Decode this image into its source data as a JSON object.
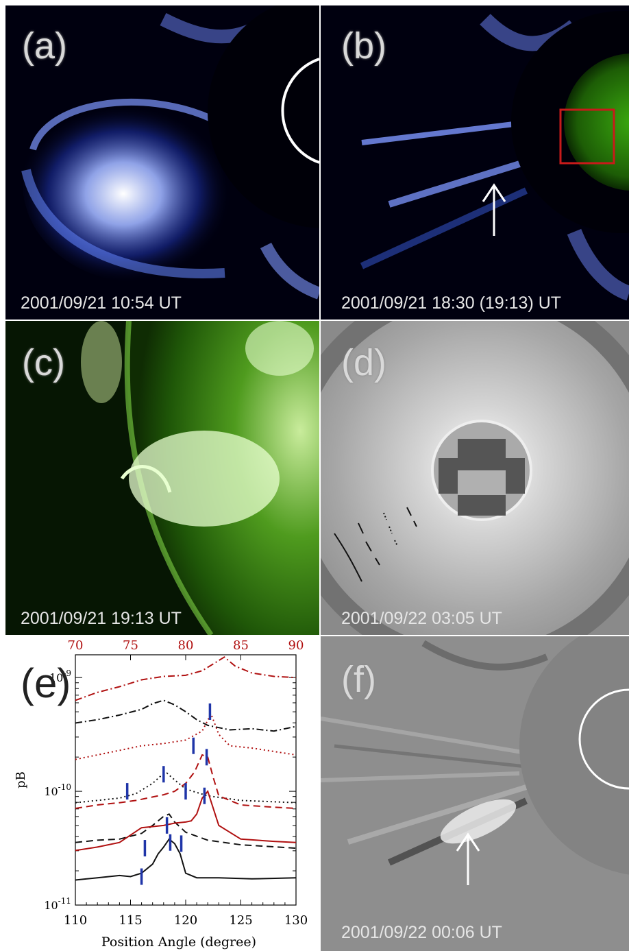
{
  "panels": {
    "a": {
      "label": "(a)",
      "timestamp": "2001/09/21 10:54 UT"
    },
    "b": {
      "label": "(b)",
      "timestamp": "2001/09/21 18:30 (19:13) UT"
    },
    "c": {
      "label": "(c)",
      "timestamp": "2001/09/21 19:13 UT"
    },
    "d": {
      "label": "(d)",
      "timestamp": "2001/09/22 03:05 UT"
    },
    "e": {
      "label": "(e)"
    },
    "f": {
      "label": "(f)",
      "timestamp": "2001/09/22 00:06 UT"
    }
  },
  "colors": {
    "coronagraph_blue": "#3a5fe0",
    "eit_green": "#2e8a12",
    "red_curve": "#b01010",
    "marker_blue": "#1f35a8"
  },
  "icons": {
    "arrow_b": "up-arrow-icon",
    "arrow_f": "up-arrow-icon"
  },
  "chart_data": {
    "type": "line",
    "xlabel": "Position Angle (degree)",
    "ylabel": "pB",
    "x_bottom_ticks": [
      "110",
      "115",
      "120",
      "125",
      "130"
    ],
    "x_top_ticks": [
      "70",
      "75",
      "80",
      "85",
      "90"
    ],
    "y_tick_labels": [
      "10^-9",
      "10^-10",
      "10^-11"
    ],
    "xlim": [
      110,
      130
    ],
    "xlim_top": [
      70,
      90
    ],
    "ylim_log10": [
      -11,
      -8.8
    ],
    "yscale": "log",
    "series": [
      {
        "color": "#111111",
        "style": "solid",
        "axis": "bottom",
        "x": [
          110,
          112,
          114,
          115,
          116,
          117,
          117.5,
          118,
          118.5,
          119,
          119.5,
          120,
          121,
          123,
          126,
          130
        ],
        "y_log10": [
          -10.78,
          -10.76,
          -10.74,
          -10.75,
          -10.72,
          -10.64,
          -10.55,
          -10.49,
          -10.42,
          -10.46,
          -10.55,
          -10.72,
          -10.76,
          -10.76,
          -10.77,
          -10.76
        ]
      },
      {
        "color": "#111111",
        "style": "dashed",
        "axis": "bottom",
        "x": [
          110,
          112,
          114,
          116,
          117,
          118,
          118.5,
          119,
          120,
          122,
          125,
          130
        ],
        "y_log10": [
          -10.45,
          -10.43,
          -10.42,
          -10.37,
          -10.3,
          -10.22,
          -10.2,
          -10.27,
          -10.36,
          -10.43,
          -10.47,
          -10.5
        ]
      },
      {
        "color": "#111111",
        "style": "dotted",
        "axis": "bottom",
        "x": [
          110,
          112,
          114,
          115.5,
          117,
          117.8,
          118.3,
          119,
          120,
          122,
          125,
          130
        ],
        "y_log10": [
          -10.1,
          -10.08,
          -10.06,
          -10.02,
          -9.93,
          -9.86,
          -9.84,
          -9.9,
          -9.98,
          -10.04,
          -10.08,
          -10.1
        ]
      },
      {
        "color": "#111111",
        "style": "dashdot",
        "axis": "bottom",
        "x": [
          110,
          112,
          114,
          116,
          117,
          118,
          119,
          120,
          121,
          122,
          124,
          126,
          128,
          130
        ],
        "y_log10": [
          -9.4,
          -9.37,
          -9.33,
          -9.28,
          -9.23,
          -9.2,
          -9.24,
          -9.3,
          -9.37,
          -9.42,
          -9.46,
          -9.45,
          -9.47,
          -9.43
        ]
      },
      {
        "color": "#b01010",
        "style": "solid",
        "axis": "top",
        "x": [
          70,
          72,
          74,
          76,
          78,
          79,
          80,
          80.5,
          81,
          81.5,
          82,
          83,
          85,
          88,
          90
        ],
        "y_log10": [
          -10.52,
          -10.49,
          -10.45,
          -10.32,
          -10.3,
          -10.28,
          -10.27,
          -10.26,
          -10.2,
          -10.06,
          -10.0,
          -10.3,
          -10.42,
          -10.44,
          -10.45
        ]
      },
      {
        "color": "#b01010",
        "style": "dashed",
        "axis": "top",
        "x": [
          70,
          72,
          74,
          75.5,
          77,
          78,
          79,
          80,
          80.8,
          81.5,
          82,
          82.5,
          83,
          85,
          88,
          90
        ],
        "y_log10": [
          -10.15,
          -10.12,
          -10.1,
          -10.08,
          -10.05,
          -10.03,
          -10.0,
          -9.93,
          -9.83,
          -9.68,
          -9.7,
          -9.88,
          -10.04,
          -10.12,
          -10.14,
          -10.15
        ]
      },
      {
        "color": "#b01010",
        "style": "dotted",
        "axis": "top",
        "x": [
          70,
          72,
          74,
          76,
          78,
          80,
          81.5,
          82.3,
          83,
          84,
          86,
          88,
          90
        ],
        "y_log10": [
          -9.72,
          -9.68,
          -9.64,
          -9.6,
          -9.58,
          -9.55,
          -9.47,
          -9.32,
          -9.5,
          -9.6,
          -9.62,
          -9.65,
          -9.68
        ]
      },
      {
        "color": "#b01010",
        "style": "dashdot",
        "axis": "top",
        "x": [
          70,
          72,
          74,
          76,
          78,
          80,
          81.5,
          82.5,
          83.5,
          84.5,
          86,
          88,
          90
        ],
        "y_log10": [
          -9.2,
          -9.13,
          -9.08,
          -9.02,
          -8.99,
          -8.98,
          -8.94,
          -8.88,
          -8.82,
          -8.9,
          -8.96,
          -8.99,
          -9.0
        ]
      }
    ],
    "markers_x": [
      116,
      116.3,
      118.3,
      118.6,
      119.6,
      114.7,
      118.0,
      120.0,
      121.7,
      120.7,
      121.9,
      122.2
    ],
    "markers_y_log10": [
      -10.75,
      -10.5,
      -10.3,
      -10.45,
      -10.46,
      -10.0,
      -9.85,
      -10.0,
      -10.04,
      -9.6,
      -9.7,
      -9.3
    ]
  }
}
